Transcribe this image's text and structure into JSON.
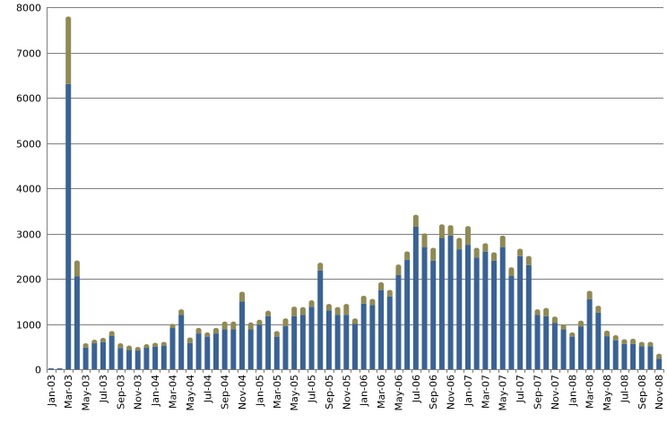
{
  "chart_data": {
    "type": "bar",
    "stacked": true,
    "ylim": [
      0,
      8000
    ],
    "yticks": [
      0,
      1000,
      2000,
      3000,
      4000,
      5000,
      6000,
      7000,
      8000
    ],
    "grid": true,
    "legend": "none",
    "colors": {
      "base": "#3A6293",
      "top": "#8F8A55",
      "grid": "#7F7F7F"
    },
    "categories": [
      "Jan-03",
      "Feb-03",
      "Mar-03",
      "Apr-03",
      "May-03",
      "Jun-03",
      "Jul-03",
      "Aug-03",
      "Sep-03",
      "Oct-03",
      "Nov-03",
      "Dec-03",
      "Jan-04",
      "Feb-04",
      "Mar-04",
      "Apr-04",
      "May-04",
      "Jun-04",
      "Jul-04",
      "Aug-04",
      "Sep-04",
      "Oct-04",
      "Nov-04",
      "Dec-04",
      "Jan-05",
      "Feb-05",
      "Mar-05",
      "Apr-05",
      "May-05",
      "Jun-05",
      "Jul-05",
      "Aug-05",
      "Sep-05",
      "Oct-05",
      "Nov-05",
      "Dec-05",
      "Jan-06",
      "Feb-06",
      "Mar-06",
      "Apr-06",
      "May-06",
      "Jun-06",
      "Jul-06",
      "Aug-06",
      "Sep-06",
      "Oct-06",
      "Nov-06",
      "Dec-06",
      "Jan-07",
      "Feb-07",
      "Mar-07",
      "Apr-07",
      "May-07",
      "Jun-07",
      "Jul-07",
      "Aug-07",
      "Sep-07",
      "Oct-07",
      "Nov-07",
      "Dec-07",
      "Jan-08",
      "Feb-08",
      "Mar-08",
      "Apr-08",
      "May-08",
      "Jun-08",
      "Jul-08",
      "Aug-08",
      "Sep-08",
      "Oct-08",
      "Nov-08"
    ],
    "tick_labels": [
      "Jan-03",
      "",
      "Mar-03",
      "",
      "May-03",
      "",
      "Jul-03",
      "",
      "Sep-03",
      "",
      "Nov-03",
      "",
      "Jan-04",
      "",
      "Mar-04",
      "",
      "May-04",
      "",
      "Jul-04",
      "",
      "Sep-04",
      "",
      "Nov-04",
      "",
      "Jan-05",
      "",
      "Mar-05",
      "",
      "May-05",
      "",
      "Jul-05",
      "",
      "Sep-05",
      "",
      "Nov-05",
      "",
      "Jan-06",
      "",
      "Mar-06",
      "",
      "May-06",
      "",
      "Jul-06",
      "",
      "Sep-06",
      "",
      "Nov-06",
      "",
      "Jan-07",
      "",
      "Mar-07",
      "",
      "May-07",
      "",
      "Jul-07",
      "",
      "Sep-07",
      "",
      "Nov-07",
      "",
      "Jan-08",
      "",
      "Mar-08",
      "",
      "May-08",
      "",
      "Jul-08",
      "",
      "Sep-08",
      "",
      "Nov-08"
    ],
    "series": [
      {
        "values": [
          20,
          20,
          6300,
          2050,
          480,
          580,
          600,
          740,
          470,
          430,
          420,
          480,
          500,
          520,
          910,
          1200,
          580,
          790,
          720,
          790,
          880,
          880,
          1500,
          880,
          980,
          1170,
          720,
          950,
          1170,
          1200,
          1380,
          2180,
          1300,
          1200,
          1200,
          1000,
          1450,
          1420,
          1750,
          1610,
          2080,
          2420,
          3150,
          2700,
          2400,
          2900,
          2950,
          2650,
          2750,
          2470,
          2600,
          2400,
          2700,
          2060,
          2500,
          2300,
          1200,
          1170,
          1020,
          880,
          720,
          940,
          1550,
          1250,
          730,
          640,
          560,
          560,
          510,
          510,
          230
        ]
      },
      {
        "values": [
          0,
          0,
          1450,
          310,
          50,
          30,
          50,
          60,
          60,
          50,
          30,
          30,
          40,
          40,
          50,
          80,
          80,
          80,
          50,
          80,
          130,
          130,
          170,
          110,
          70,
          80,
          80,
          130,
          170,
          130,
          100,
          130,
          100,
          130,
          200,
          80,
          130,
          90,
          130,
          100,
          190,
          140,
          220,
          260,
          240,
          260,
          190,
          210,
          370,
          170,
          140,
          140,
          210,
          150,
          120,
          160,
          80,
          140,
          100,
          70,
          50,
          90,
          140,
          110,
          80,
          70,
          60,
          70,
          50,
          50,
          70
        ]
      }
    ]
  }
}
